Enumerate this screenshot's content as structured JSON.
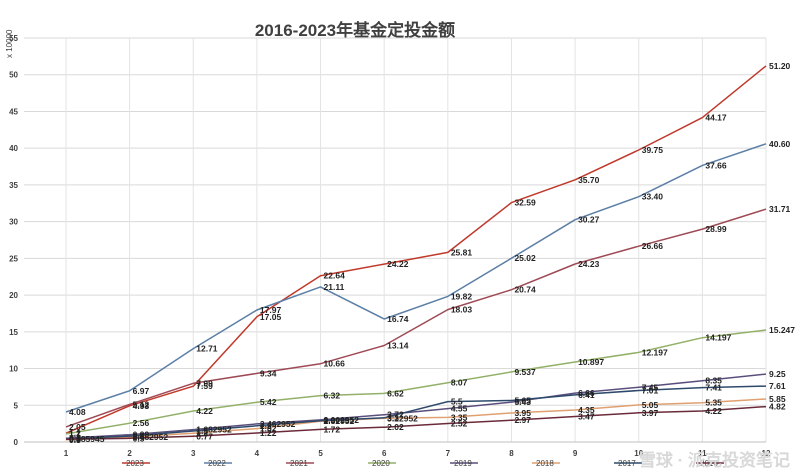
{
  "chart_data": {
    "type": "line",
    "title": "2016-2023年基金定投金额",
    "ylabel": "x 10000",
    "xlabel": "",
    "x": [
      "1",
      "2",
      "3",
      "4",
      "5",
      "6",
      "7",
      "8",
      "9",
      "10",
      "11",
      "12"
    ],
    "ylim": [
      0,
      55
    ],
    "ytick_labels": [
      "0",
      "5",
      "10",
      "15",
      "20",
      "25",
      "30",
      "35",
      "40",
      "45",
      "50",
      "55"
    ],
    "grid": true,
    "legend_position": "bottom",
    "series": [
      {
        "name": "2023",
        "color": "#c0392b",
        "values": [
          1.2,
          4.93,
          7.59,
          17.05,
          22.64,
          24.22,
          25.81,
          32.59,
          35.7,
          39.75,
          44.17,
          51.2
        ],
        "labels": [
          "1.2",
          "4.93",
          "7.59",
          "17.05",
          "22.64",
          "24.22",
          "25.81",
          "32.59",
          "35.70",
          "39.75",
          "44.17",
          "51.20"
        ]
      },
      {
        "name": "2022",
        "color": "#5b7fa6",
        "values": [
          4.08,
          6.97,
          12.71,
          17.97,
          21.11,
          16.74,
          19.82,
          25.02,
          30.27,
          33.4,
          37.66,
          40.6
        ],
        "labels": [
          "4.08",
          "6.97",
          "12.71",
          "17.97",
          "21.11",
          "16.74",
          "19.82",
          "25.02",
          "30.27",
          "33.40",
          "37.66",
          "40.60"
        ]
      },
      {
        "name": "2021",
        "color": "#9e4a55",
        "values": [
          2.05,
          5.12,
          7.99,
          9.34,
          10.66,
          13.14,
          18.03,
          20.74,
          24.23,
          26.66,
          28.99,
          31.71
        ],
        "labels": [
          "2.05",
          "5.12",
          "7.99",
          "9.34",
          "10.66",
          "13.14",
          "18.03",
          "20.74",
          "24.23",
          "26.66",
          "28.99",
          "31.71"
        ]
      },
      {
        "name": "2020",
        "color": "#93b068",
        "values": [
          1.1,
          2.56,
          4.22,
          5.42,
          6.32,
          6.62,
          8.07,
          9.537,
          10.897,
          12.197,
          14.197,
          15.247
        ],
        "labels": [
          "1.1",
          "2.56",
          "4.22",
          "5.42",
          "6.32",
          "6.62",
          "8.07",
          "9.537",
          "10.897",
          "12.197",
          "14.197",
          "15.247"
        ]
      },
      {
        "name": "2019",
        "color": "#5a4f7c",
        "values": [
          0.5,
          0.99,
          1.682952,
          2.462952,
          3.002952,
          3.72,
          4.55,
          5.43,
          6.66,
          7.45,
          8.35,
          9.25
        ],
        "labels": [
          "0.5",
          "0.99",
          "1.682952",
          "2.462952",
          "3.002952",
          "3.72",
          "4.55",
          "5.43",
          "6.66",
          "7.45",
          "8.35",
          "9.25"
        ]
      },
      {
        "name": "2018",
        "color": "#e0a070",
        "values": [
          0.3,
          0.682952,
          1.2,
          1.82,
          2.82952,
          3.22952,
          3.35,
          3.95,
          4.35,
          5.05,
          5.35,
          5.85
        ],
        "labels": [
          "0.3",
          "0.682952",
          "1.2",
          "1.82",
          "2.82952",
          "3.22952",
          "3.35",
          "3.95",
          "4.35",
          "5.05",
          "5.35",
          "5.85"
        ]
      },
      {
        "name": "2017",
        "color": "#2e4a6b",
        "values": [
          0.4,
          0.8,
          1.5,
          2.2,
          2.9,
          3.3,
          5.5,
          5.65,
          6.41,
          7.01,
          7.41,
          7.61
        ],
        "labels": [
          "0.4",
          "0.8",
          "1.5",
          "2.2",
          "2.9",
          "3.3",
          "5.5",
          "5.65",
          "6.41",
          "7.01",
          "7.41",
          "7.61"
        ]
      },
      {
        "name": "2016",
        "color": "#6b2a3a",
        "values": [
          0.385945,
          0.5,
          0.77,
          1.22,
          1.72,
          2.02,
          2.52,
          2.97,
          3.47,
          3.97,
          4.22,
          4.82
        ],
        "labels": [
          "0.385945",
          "0.5",
          "0.77",
          "1.22",
          "1.72",
          "2.02",
          "2.52",
          "2.97",
          "3.47",
          "3.97",
          "4.22",
          "4.82"
        ]
      }
    ]
  },
  "watermark": "雪球 · 派克投资笔记"
}
